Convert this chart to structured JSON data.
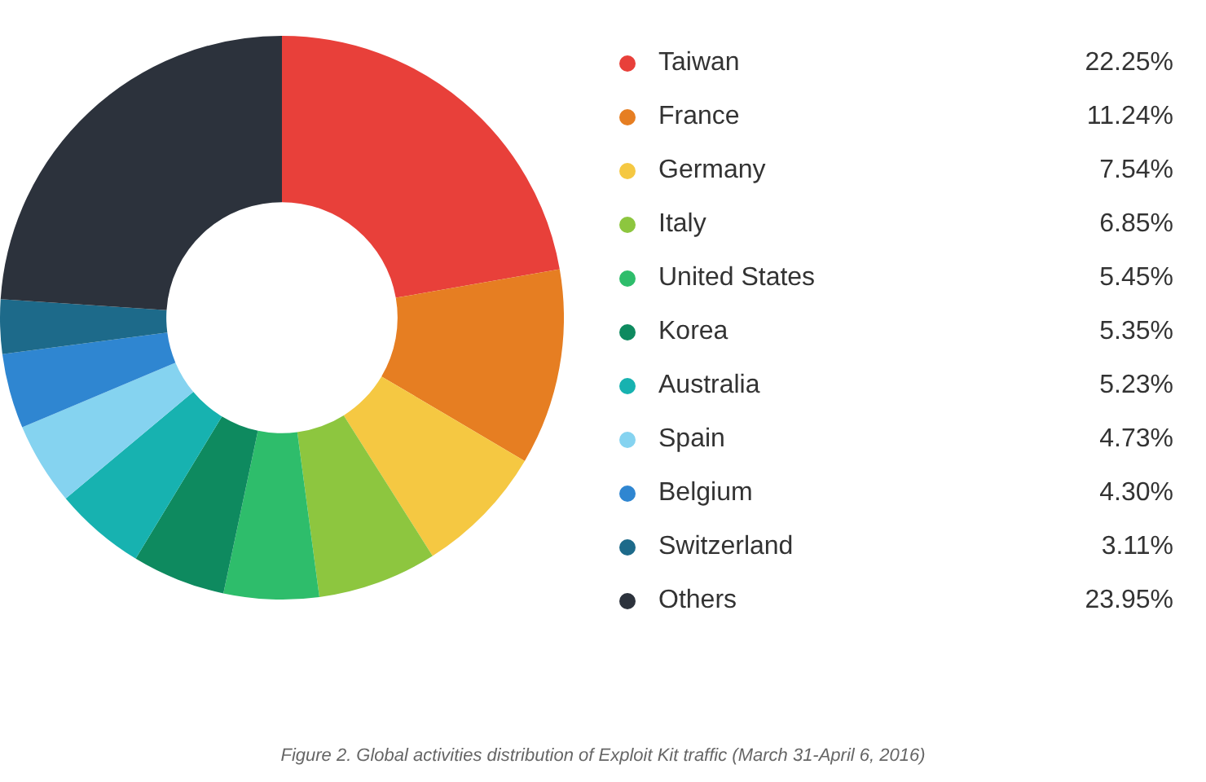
{
  "chart_data": {
    "type": "donut",
    "categories": [
      "Taiwan",
      "France",
      "Germany",
      "Italy",
      "United States",
      "Korea",
      "Australia",
      "Spain",
      "Belgium",
      "Switzerland",
      "Others"
    ],
    "values": [
      22.25,
      11.24,
      7.54,
      6.85,
      5.45,
      5.35,
      5.23,
      4.73,
      4.3,
      3.11,
      23.95
    ],
    "value_labels": [
      "22.25%",
      "11.24%",
      "7.54%",
      "6.85%",
      "5.45%",
      "5.35%",
      "5.23%",
      "4.73%",
      "4.30%",
      "3.11%",
      "23.95%"
    ],
    "colors": [
      "#e8403a",
      "#e67e22",
      "#f5c842",
      "#8dc63f",
      "#2ebd6b",
      "#0e8a5f",
      "#17b2b0",
      "#85d3f0",
      "#2f86d1",
      "#1d6a8a",
      "#2c323c"
    ],
    "legend": "right",
    "annotations": [
      "Figure 2. Global activities distribution of Exploit Kit traffic (March 31-April 6, 2016)"
    ]
  }
}
